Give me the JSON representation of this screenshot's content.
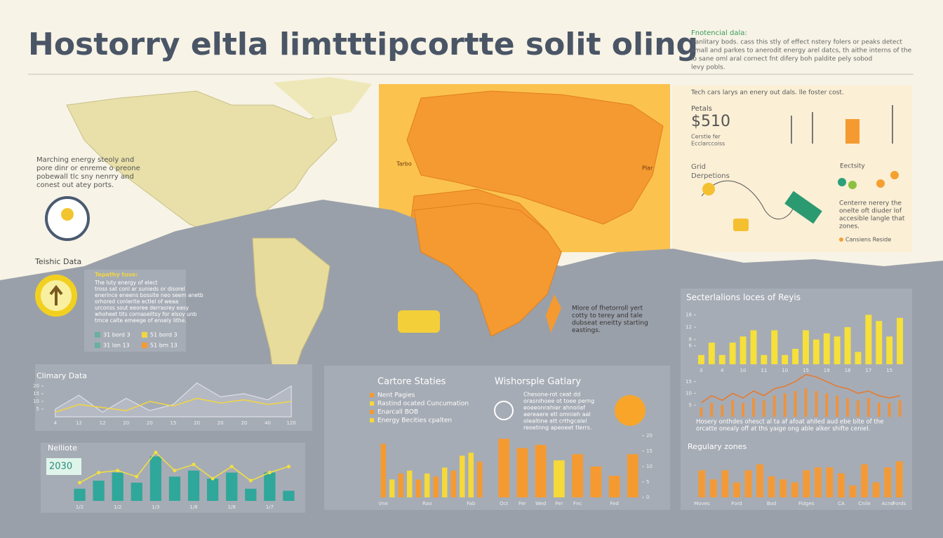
{
  "header": {
    "title": "Hostorry eltla limtttipcortte solit oling",
    "note_title": "Fnotencial dala:",
    "note_lines": [
      "Sanlitary bods. cass this stly of effect nstery folers or peaks detect",
      "small and parkes to anerodit energy arel datcs, th aithe interns of the",
      "lo sane oml aral cornect fnt difery boh paldite pely sobod",
      "levy pobls."
    ]
  },
  "intro": {
    "lines": [
      "Marching energy steoly and",
      "pore dinr or enreme o preone",
      "pobewall tlc sny nenrry and",
      "conest out atey ports."
    ]
  },
  "map_labels": [
    "Tarbo",
    "Plar"
  ],
  "summary": {
    "lines": [
      "Mlore of fhetorroll yert",
      "cotty to terey and tale",
      "dubseat eneitty starting",
      "eastings."
    ]
  },
  "costs": {
    "headline": "Tech cars larys an enery out dals. lle foster cost.",
    "label": "Petals",
    "amount": "$510",
    "sub_lines": [
      "Cerstle fer",
      "Ecclarccoiss"
    ],
    "grid_lines": [
      "Grid",
      "Derpetions"
    ],
    "electricity": "Eectsity",
    "text_lines": [
      "Centerre nerery the",
      "onelte oft diuder lof",
      "accesible langle that",
      "zones."
    ],
    "legend": "Cansiens Reside"
  },
  "tech": {
    "title": "Teishic Data",
    "lead": "Tepathy tuse:",
    "lines": [
      "The luty energy of elect",
      "tross sat conl ar sunieds or disorel",
      "enerince eneens bossite neo seem anetb",
      "orhored conlerite ectlel of weaa",
      "urconss sout eeoree derrasrey easy",
      "whoheet tits cornaseiltsy for elsoy unb",
      "trnce calte emeege of ensely lithe."
    ],
    "legend": [
      "31 bord 3",
      "51 bord 3",
      "31 lon 13",
      "51 brn 13"
    ]
  },
  "middle": {
    "title": "Cartore Staties",
    "legend": [
      "Nent Pagies",
      "Rastind ocated Cuncumation",
      "Enarcall BOB",
      "Energy Becities cpalten"
    ],
    "title2": "Wishorsple Gatlary",
    "lines": [
      "Chesone-rot ceat dd",
      "orasnihoee ot toee perng",
      "eoeeonrahier ahnoilaf",
      "aereaere etl omnieh aal",
      "olealtine att crthgcalel",
      "reoetnng apeoeet tlerrs."
    ]
  },
  "right": {
    "title": "Secterlalions loces of Reyis",
    "lines": [
      "Hosery onthdes ohesct al ta af afoat ahlled aud ebe blte of the",
      "orcatte onealy off at ths yaige ong able alker shifte ceniel."
    ],
    "badge": "2030"
  },
  "charts": [
    {
      "type": "area",
      "title": "Climary Data",
      "categories": [
        "4",
        "12",
        "12",
        "20",
        "20",
        "15",
        "20",
        "20",
        "20",
        "40",
        "120"
      ],
      "ylim": [
        0,
        25
      ],
      "yticks": [
        5,
        10,
        15,
        20
      ],
      "series": [
        {
          "kind": "area",
          "color": "#b9bdc8",
          "values": [
            5,
            14,
            3,
            12,
            4,
            8,
            22,
            13,
            15,
            11,
            20
          ]
        },
        {
          "kind": "line",
          "color": "#f2d640",
          "values": [
            3,
            8,
            6,
            4,
            10,
            7,
            12,
            9,
            11,
            8,
            10
          ]
        }
      ]
    },
    {
      "type": "bar",
      "title": "Nelliote",
      "categories": [
        "1/2",
        null,
        "1/2",
        null,
        "1/3",
        null,
        "1/8",
        null,
        "1/8",
        null,
        "1/7",
        null
      ],
      "ylim": [
        0,
        26
      ],
      "series": [
        {
          "kind": "bar",
          "color": "#2fa79a",
          "values": [
            6,
            10,
            14,
            9,
            22,
            12,
            15,
            11,
            14,
            6,
            14,
            5
          ]
        },
        {
          "kind": "line",
          "color": "#f2e040",
          "values": [
            9,
            14,
            15,
            12,
            24,
            15,
            18,
            11,
            17,
            10,
            14,
            17
          ]
        }
      ]
    },
    {
      "type": "bar",
      "categories": [
        "Vne",
        null,
        null,
        null,
        null,
        "Rao",
        null,
        null,
        null,
        null,
        "Fab",
        null
      ],
      "ylim": [
        0,
        20
      ],
      "series": [
        {
          "kind": "bar",
          "colors": [
            "#f59a30",
            "#f6d93a",
            "#f59a30",
            "#f6d93a",
            "#f59a30",
            "#f6d93a",
            "#f59a30",
            "#f6d93a",
            "#f59a30",
            "#f6d93a",
            "#f6d93a",
            "#f59a30"
          ],
          "values": [
            18,
            6,
            8,
            9,
            6,
            8,
            7,
            10,
            9,
            14,
            15,
            12
          ]
        }
      ]
    },
    {
      "type": "bar",
      "categories": [
        "Oct",
        "Fer",
        "Wed",
        "Fer",
        "Fnc",
        null,
        "Fed",
        null
      ],
      "ylim": [
        0,
        20
      ],
      "yticks": [
        0,
        5,
        10,
        15,
        20
      ],
      "series": [
        {
          "kind": "bar",
          "colors": [
            "#f59a30",
            "#f59a30",
            "#f59a30",
            "#f6d93a",
            "#f59a30",
            "#f59a30",
            "#f59a30",
            "#f59a30"
          ],
          "values": [
            19,
            16,
            17,
            12,
            14,
            10,
            7,
            14
          ]
        }
      ]
    },
    {
      "type": "bar",
      "categories": [
        "0",
        null,
        "4",
        null,
        "10",
        null,
        "11",
        null,
        "10",
        null,
        "15",
        null,
        "19",
        null,
        "18",
        null,
        "17",
        null,
        "15",
        null
      ],
      "ylim": [
        0,
        17
      ],
      "yticks": [
        6,
        8,
        12,
        16
      ],
      "series": [
        {
          "kind": "bar",
          "color": "#f6e03a",
          "values": [
            3,
            7,
            3,
            7,
            9,
            11,
            3,
            11,
            3,
            5,
            11,
            8,
            10,
            9,
            12,
            4,
            16,
            14,
            9,
            15
          ]
        }
      ]
    },
    {
      "type": "line",
      "ylim": [
        0,
        20
      ],
      "yticks": [
        5,
        10,
        15
      ],
      "series": [
        {
          "kind": "bar",
          "color": "#f0923a",
          "values": [
            4,
            6,
            5,
            7,
            6,
            8,
            7,
            9,
            10,
            11,
            12,
            11,
            10,
            9,
            8,
            7,
            8,
            6,
            6,
            7
          ]
        },
        {
          "kind": "line",
          "color": "#e8782a",
          "values": [
            6,
            9,
            7,
            10,
            8,
            11,
            9,
            12,
            13,
            15,
            18,
            17,
            15,
            13,
            12,
            10,
            11,
            9,
            8,
            9
          ]
        }
      ]
    },
    {
      "type": "bar",
      "title": "Regulary zones",
      "categories": [
        "Moves",
        null,
        null,
        "Ford",
        null,
        null,
        "Bod",
        null,
        null,
        "Fidges",
        null,
        null,
        "CA",
        null,
        "Cnile",
        null,
        "Acnd",
        "Fords"
      ],
      "ylim": [
        0,
        14
      ],
      "series": [
        {
          "kind": "bar",
          "color": "#f39a38",
          "values": [
            9,
            6,
            9,
            5,
            9,
            11,
            7,
            6,
            5,
            9,
            10,
            10,
            8,
            4,
            11,
            5,
            10,
            12
          ]
        }
      ]
    }
  ]
}
